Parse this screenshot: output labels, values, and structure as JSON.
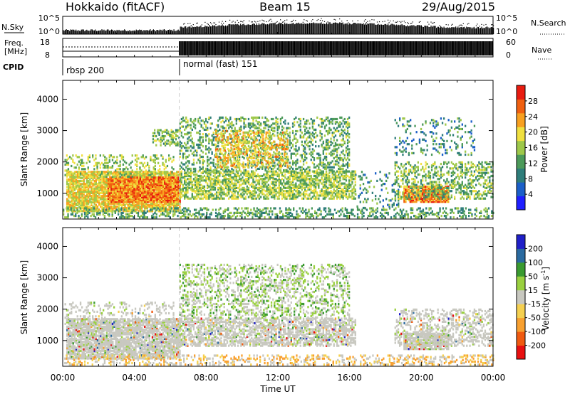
{
  "header": {
    "station": "Hokkaido (fitACF)",
    "beam": "Beam 15",
    "date": "29/Aug/2015"
  },
  "params": {
    "nsky_label": "N.Sky",
    "nsky_ticks": [
      "10^5",
      "10^0"
    ],
    "nsearch_label": "N.Search",
    "freq_label": "Freq.",
    "freq_unit": "[MHz]",
    "freq_ticks": [
      "18",
      "8"
    ],
    "nave_label": "Nave",
    "nave_ticks": [
      "60",
      "0"
    ],
    "cpid_label": "CPID",
    "cpid_segments": [
      {
        "label": "rbsp 200",
        "start_hour": 0,
        "end_hour": 6.5
      },
      {
        "label": "normal (fast) 151",
        "start_hour": 6.5,
        "end_hour": 24
      }
    ]
  },
  "colors": {
    "power": [
      "#1f1fff",
      "#1b5fc8",
      "#2e7d7a",
      "#4c9a5a",
      "#9ec84a",
      "#f0e040",
      "#f8a020",
      "#f06010",
      "#e81c10"
    ],
    "velocity": [
      "#e81010",
      "#f05a10",
      "#f8a030",
      "#f5d050",
      "#c8c8c0",
      "#9ad040",
      "#3a9a30",
      "#2a6aa0",
      "#2020c8"
    ]
  },
  "chart_data": [
    {
      "type": "heatmap",
      "quantity": "Power",
      "ylabel": "Slant Range [km]",
      "xlabel": "",
      "xlim": [
        0,
        24
      ],
      "ylim": [
        180,
        4600
      ],
      "x_ticks": [
        "00:00",
        "04:00",
        "08:00",
        "12:00",
        "16:00",
        "20:00",
        "00:00"
      ],
      "y_ticks": [
        1000,
        2000,
        3000,
        4000
      ],
      "colorbar": {
        "label": "Power [dB]",
        "ticks": [
          4,
          8,
          12,
          16,
          20,
          24,
          28
        ],
        "range": [
          0,
          32
        ]
      },
      "regions": [
        {
          "t0": 0.2,
          "t1": 6.5,
          "r0": 400,
          "r1": 1650,
          "density": 0.8,
          "level": 20
        },
        {
          "t0": 2.5,
          "t1": 6.5,
          "r0": 700,
          "r1": 1500,
          "density": 0.95,
          "level": 26
        },
        {
          "t0": 0.1,
          "t1": 6.2,
          "r0": 1500,
          "r1": 2200,
          "density": 0.25,
          "level": 16
        },
        {
          "t0": 5.0,
          "t1": 6.5,
          "r0": 2500,
          "r1": 3000,
          "density": 0.5,
          "level": 14
        },
        {
          "t0": 6.5,
          "t1": 16.3,
          "r0": 800,
          "r1": 1700,
          "density": 0.6,
          "level": 16
        },
        {
          "t0": 6.5,
          "t1": 16.0,
          "r0": 1700,
          "r1": 3400,
          "density": 0.3,
          "level": 13
        },
        {
          "t0": 8.5,
          "t1": 12.5,
          "r0": 1800,
          "r1": 3000,
          "density": 0.35,
          "level": 21
        },
        {
          "t0": 16.3,
          "t1": 18.7,
          "r0": 500,
          "r1": 1700,
          "density": 0.12,
          "level": 10
        },
        {
          "t0": 19.0,
          "t1": 21.5,
          "r0": 700,
          "r1": 1200,
          "density": 0.85,
          "level": 26
        },
        {
          "t0": 18.5,
          "t1": 24.0,
          "r0": 800,
          "r1": 2000,
          "density": 0.35,
          "level": 14
        },
        {
          "t0": 18.5,
          "t1": 23.0,
          "r0": 2200,
          "r1": 3400,
          "density": 0.15,
          "level": 10
        },
        {
          "t0": 0.0,
          "t1": 24.0,
          "r0": 200,
          "r1": 500,
          "density": 0.35,
          "level": 12
        }
      ]
    },
    {
      "type": "heatmap",
      "quantity": "Velocity",
      "ylabel": "Slant Range [km]",
      "xlabel": "Time UT",
      "xlim": [
        0,
        24
      ],
      "ylim": [
        180,
        4600
      ],
      "x_ticks": [
        "00:00",
        "04:00",
        "08:00",
        "12:00",
        "16:00",
        "20:00",
        "00:00"
      ],
      "y_ticks": [
        1000,
        2000,
        3000,
        4000
      ],
      "colorbar": {
        "label": "Velocity [m s^-1]",
        "ticks": [
          200,
          100,
          50,
          15,
          -15,
          -50,
          -100,
          -200
        ]
      },
      "regions": [
        {
          "t0": 0.2,
          "t1": 6.5,
          "r0": 400,
          "r1": 1650,
          "density": 0.8,
          "level": 0
        },
        {
          "t0": 0.1,
          "t1": 6.2,
          "r0": 1500,
          "r1": 2200,
          "density": 0.2,
          "level": 0
        },
        {
          "t0": 6.5,
          "t1": 16.3,
          "r0": 800,
          "r1": 1700,
          "density": 0.6,
          "level": 0
        },
        {
          "t0": 6.5,
          "t1": 16.0,
          "r0": 1700,
          "r1": 3400,
          "density": 0.3,
          "level": 20
        },
        {
          "t0": 19.0,
          "t1": 21.5,
          "r0": 700,
          "r1": 1200,
          "density": 0.8,
          "level": 0
        },
        {
          "t0": 18.5,
          "t1": 24.0,
          "r0": 800,
          "r1": 2000,
          "density": 0.35,
          "level": 0
        },
        {
          "t0": 0.0,
          "t1": 24.0,
          "r0": 200,
          "r1": 500,
          "density": 0.3,
          "level": -40
        }
      ]
    }
  ]
}
